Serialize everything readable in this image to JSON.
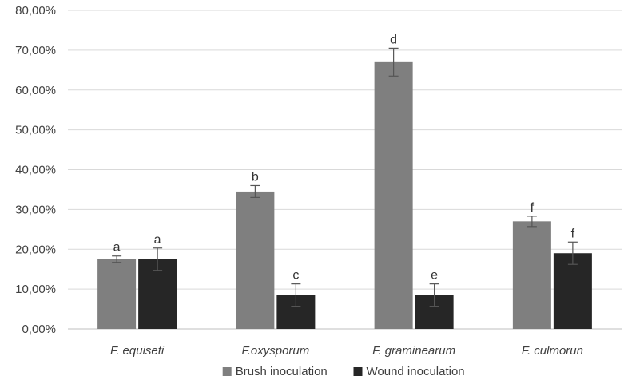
{
  "chart_data": {
    "type": "bar",
    "title": "",
    "xlabel": "",
    "ylabel": "",
    "ylim": [
      0,
      80
    ],
    "y_tick_step": 10,
    "y_tick_labels": [
      "0,00%",
      "10,00%",
      "20,00%",
      "30,00%",
      "40,00%",
      "50,00%",
      "60,00%",
      "70,00%",
      "80,00%"
    ],
    "grid": true,
    "legend_position": "bottom",
    "categories": [
      "F. equiseti",
      "F.oxysporum",
      "F. graminearum",
      "F. culmorun"
    ],
    "series": [
      {
        "name": "Brush inoculation",
        "color": "#7f7f7f",
        "values": [
          17.5,
          34.5,
          67.0,
          27.0
        ],
        "errors": [
          0.8,
          1.5,
          3.5,
          1.3
        ],
        "labels": [
          "a",
          "b",
          "d",
          "f"
        ]
      },
      {
        "name": "Wound inoculation",
        "color": "#262626",
        "values": [
          17.5,
          8.5,
          8.5,
          19.0
        ],
        "errors": [
          2.8,
          2.8,
          2.8,
          2.8
        ],
        "labels": [
          "a",
          "c",
          "e",
          "f"
        ]
      }
    ]
  }
}
